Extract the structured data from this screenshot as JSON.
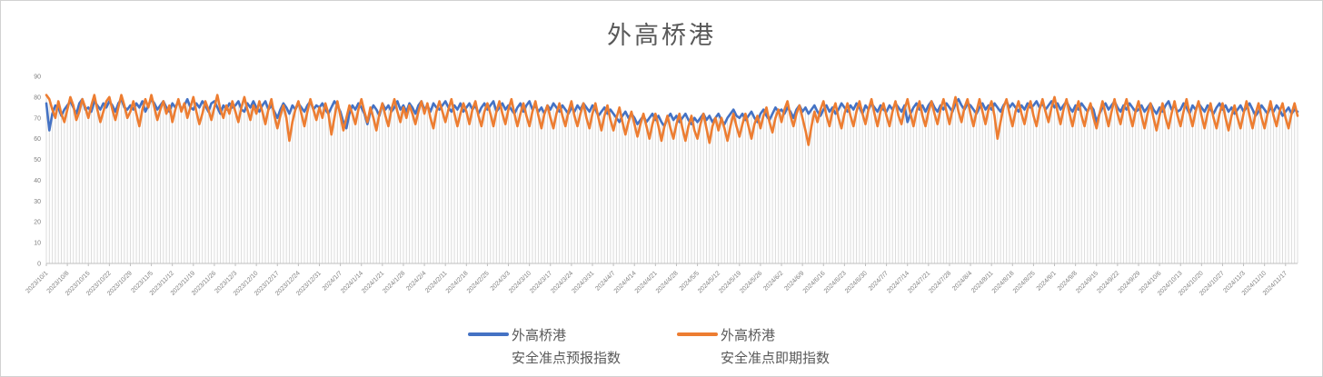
{
  "chart_data": {
    "type": "line",
    "title": "外高桥港",
    "xlabel": "",
    "ylabel": "",
    "ylim": [
      0,
      90
    ],
    "ytick_step": 10,
    "grid": false,
    "droplines": true,
    "legend_position": "bottom",
    "x_label_interval_days": 7,
    "x_labels": [
      "2023/10/1",
      "2023/10/8",
      "2023/10/15",
      "2023/10/22",
      "2023/10/29",
      "2023/11/5",
      "2023/11/12",
      "2023/11/19",
      "2023/11/26",
      "2023/12/3",
      "2023/12/10",
      "2023/12/17",
      "2023/12/24",
      "2023/12/31",
      "2024/1/7",
      "2024/1/14",
      "2024/1/21",
      "2024/1/28",
      "2024/2/4",
      "2024/2/11",
      "2024/2/18",
      "2024/2/25",
      "2024/3/3",
      "2024/3/10",
      "2024/3/17",
      "2024/3/24",
      "2024/3/31",
      "2024/4/7",
      "2024/4/14",
      "2024/4/21",
      "2024/4/28",
      "2024/5/5",
      "2024/5/12",
      "2024/5/19",
      "2024/5/26",
      "2024/6/2",
      "2024/6/9",
      "2024/6/16",
      "2024/6/23",
      "2024/6/30",
      "2024/7/7",
      "2024/7/14",
      "2024/7/21",
      "2024/7/28",
      "2024/8/4",
      "2024/8/11",
      "2024/8/18",
      "2024/8/25",
      "2024/9/1",
      "2024/9/8",
      "2024/9/15",
      "2024/9/22",
      "2024/9/29",
      "2024/10/6",
      "2024/10/13",
      "2024/10/20",
      "2024/10/27",
      "2024/11/3",
      "2024/11/10",
      "2024/11/17"
    ],
    "colors": {
      "forecast_series": "#4472C4",
      "spot_series": "#ED7D31",
      "dropline": "#DCDCDC",
      "axis": "#BFBFBF",
      "axis_text": "#7F7F7F",
      "title_text": "#595959"
    },
    "series": [
      {
        "name": "外高桥港安全准点预报指数",
        "legend_line1": "外高桥港",
        "legend_line2": "安全准点预报指数",
        "color": "#4472C4",
        "values": [
          77,
          64,
          72,
          76,
          75,
          71,
          74,
          76,
          78,
          75,
          72,
          77,
          79,
          74,
          75,
          73,
          78,
          76,
          74,
          77,
          75,
          78,
          76,
          73,
          77,
          79,
          75,
          74,
          76,
          74,
          77,
          75,
          78,
          73,
          76,
          79,
          77,
          74,
          76,
          78,
          75,
          73,
          77,
          75,
          78,
          74,
          76,
          79,
          75,
          74,
          77,
          75,
          78,
          76,
          73,
          77,
          78,
          75,
          72,
          76,
          74,
          77,
          75,
          76,
          78,
          74,
          73,
          77,
          75,
          78,
          75,
          73,
          76,
          78,
          74,
          76,
          73,
          70,
          74,
          77,
          75,
          72,
          76,
          74,
          77,
          75,
          73,
          76,
          78,
          74,
          76,
          75,
          77,
          74,
          72,
          75,
          78,
          76,
          73,
          68,
          65,
          72,
          76,
          74,
          77,
          75,
          72,
          67,
          73,
          76,
          74,
          71,
          77,
          74,
          76,
          73,
          75,
          78,
          74,
          76,
          73,
          77,
          75,
          72,
          76,
          78,
          74,
          76,
          73,
          77,
          75,
          74,
          76,
          78,
          75,
          73,
          76,
          74,
          77,
          73,
          75,
          77,
          74,
          76,
          72,
          75,
          77,
          74,
          76,
          78,
          73,
          75,
          77,
          74,
          76,
          74,
          72,
          75,
          77,
          73,
          76,
          78,
          74,
          76,
          73,
          75,
          72,
          76,
          74,
          77,
          75,
          73,
          76,
          74,
          72,
          75,
          73,
          76,
          74,
          77,
          75,
          73,
          76,
          74,
          71,
          73,
          75,
          72,
          74,
          72,
          70,
          68,
          71,
          73,
          70,
          72,
          70,
          67,
          69,
          71,
          68,
          70,
          72,
          69,
          71,
          68,
          66,
          70,
          72,
          69,
          71,
          68,
          70,
          72,
          69,
          67,
          70,
          68,
          70,
          72,
          69,
          71,
          68,
          70,
          72,
          69,
          67,
          70,
          72,
          74,
          71,
          70,
          72,
          69,
          71,
          73,
          70,
          68,
          72,
          74,
          71,
          69,
          72,
          75,
          73,
          74,
          72,
          75,
          73,
          70,
          74,
          76,
          73,
          75,
          72,
          74,
          76,
          73,
          71,
          74,
          76,
          73,
          75,
          72,
          74,
          77,
          75,
          73,
          76,
          74,
          77,
          75,
          72,
          76,
          74,
          77,
          75,
          73,
          76,
          74,
          73,
          76,
          74,
          77,
          75,
          73,
          76,
          68,
          72,
          75,
          77,
          74,
          76,
          73,
          76,
          78,
          75,
          73,
          76,
          74,
          77,
          75,
          73,
          77,
          79,
          76,
          74,
          77,
          76,
          74,
          72,
          75,
          77,
          74,
          76,
          74,
          77,
          75,
          73,
          76,
          78,
          75,
          77,
          75,
          73,
          76,
          74,
          77,
          75,
          76,
          78,
          75,
          77,
          74,
          76,
          78,
          75,
          77,
          74,
          76,
          78,
          75,
          73,
          76,
          74,
          77,
          75,
          73,
          76,
          74,
          68,
          72,
          75,
          77,
          74,
          76,
          78,
          75,
          73,
          76,
          74,
          77,
          75,
          73,
          74,
          76,
          73,
          75,
          77,
          74,
          72,
          75,
          73,
          76,
          78,
          74,
          76,
          73,
          74,
          77,
          75,
          72,
          76,
          74,
          77,
          75,
          73,
          76,
          74,
          72,
          75,
          77,
          74,
          76,
          73,
          75,
          72,
          74,
          76,
          73,
          75,
          77,
          74,
          71,
          73,
          76,
          74,
          72,
          75,
          73,
          76,
          74,
          71,
          73,
          75,
          72,
          74,
          73
        ]
      },
      {
        "name": "外高桥港安全准点即期指数",
        "legend_line1": "外高桥港",
        "legend_line2": "安全准点即期指数",
        "color": "#ED7D31",
        "values": [
          81,
          79,
          74,
          70,
          78,
          72,
          68,
          74,
          80,
          76,
          69,
          73,
          79,
          75,
          70,
          76,
          81,
          74,
          68,
          73,
          78,
          80,
          74,
          69,
          75,
          81,
          76,
          70,
          73,
          78,
          72,
          66,
          74,
          79,
          75,
          81,
          75,
          69,
          74,
          78,
          72,
          76,
          68,
          74,
          79,
          73,
          77,
          70,
          75,
          80,
          73,
          67,
          72,
          78,
          74,
          69,
          75,
          81,
          74,
          70,
          76,
          72,
          78,
          73,
          68,
          75,
          80,
          74,
          69,
          76,
          72,
          78,
          73,
          67,
          74,
          79,
          71,
          65,
          71,
          76,
          70,
          59,
          68,
          74,
          78,
          72,
          66,
          73,
          79,
          74,
          69,
          75,
          70,
          77,
          72,
          62,
          70,
          78,
          71,
          64,
          70,
          76,
          72,
          67,
          74,
          79,
          73,
          68,
          75,
          70,
          64,
          72,
          77,
          71,
          66,
          74,
          79,
          73,
          68,
          75,
          70,
          76,
          72,
          67,
          73,
          78,
          72,
          77,
          70,
          65,
          73,
          78,
          73,
          68,
          74,
          79,
          72,
          66,
          72,
          77,
          73,
          67,
          74,
          78,
          71,
          66,
          73,
          77,
          72,
          66,
          73,
          78,
          72,
          67,
          74,
          79,
          72,
          66,
          72,
          77,
          71,
          66,
          73,
          78,
          71,
          65,
          72,
          76,
          70,
          65,
          72,
          77,
          71,
          66,
          73,
          78,
          71,
          66,
          72,
          77,
          70,
          65,
          72,
          77,
          70,
          64,
          71,
          76,
          69,
          64,
          70,
          75,
          68,
          62,
          68,
          73,
          67,
          61,
          67,
          72,
          66,
          60,
          67,
          72,
          66,
          59,
          66,
          71,
          65,
          60,
          67,
          72,
          65,
          59,
          66,
          71,
          64,
          60,
          67,
          72,
          65,
          58,
          66,
          70,
          64,
          70,
          65,
          59,
          66,
          72,
          66,
          61,
          67,
          72,
          66,
          60,
          67,
          71,
          65,
          71,
          75,
          68,
          63,
          70,
          74,
          68,
          74,
          78,
          71,
          66,
          72,
          76,
          70,
          64,
          57,
          66,
          73,
          68,
          74,
          78,
          71,
          66,
          73,
          77,
          70,
          65,
          72,
          77,
          71,
          66,
          73,
          78,
          72,
          67,
          74,
          79,
          72,
          66,
          73,
          77,
          71,
          66,
          73,
          78,
          71,
          67,
          74,
          79,
          72,
          66,
          73,
          78,
          71,
          66,
          73,
          78,
          72,
          67,
          74,
          79,
          73,
          67,
          74,
          80,
          73,
          68,
          75,
          79,
          72,
          66,
          73,
          79,
          73,
          67,
          74,
          78,
          71,
          60,
          68,
          75,
          79,
          72,
          66,
          73,
          78,
          72,
          67,
          74,
          78,
          71,
          66,
          74,
          79,
          73,
          68,
          75,
          80,
          73,
          67,
          74,
          79,
          72,
          66,
          73,
          78,
          71,
          66,
          73,
          77,
          70,
          65,
          72,
          78,
          72,
          66,
          73,
          79,
          72,
          67,
          74,
          79,
          72,
          66,
          73,
          78,
          71,
          65,
          72,
          77,
          70,
          64,
          71,
          77,
          70,
          65,
          72,
          78,
          71,
          66,
          73,
          79,
          72,
          66,
          73,
          78,
          71,
          65,
          72,
          77,
          70,
          65,
          72,
          77,
          70,
          64,
          71,
          76,
          70,
          65,
          72,
          78,
          71,
          65,
          72,
          77,
          70,
          65,
          72,
          78,
          71,
          66,
          73,
          77,
          70,
          65,
          72,
          77,
          71
        ]
      }
    ]
  }
}
